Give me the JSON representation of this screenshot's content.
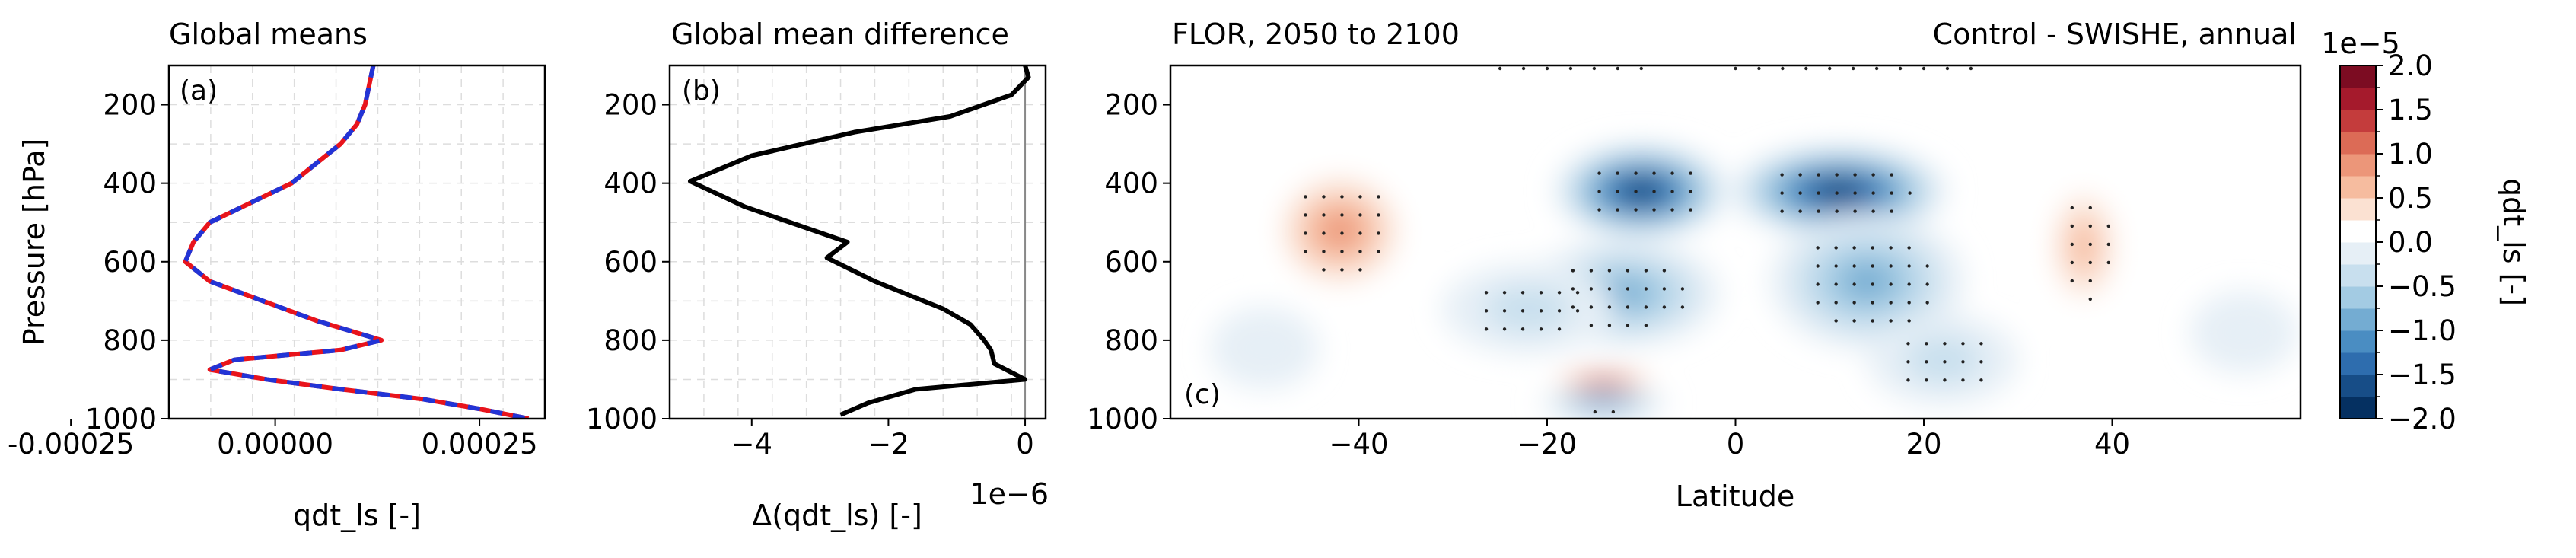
{
  "chart_data": [
    {
      "type": "line",
      "panel_label": "(a)",
      "title": "Global means",
      "xlabel": "qdt_ls [-]",
      "ylabel": "Pressure [hPa]",
      "xlim": [
        -0.00013,
        0.00033
      ],
      "ylim": [
        1000,
        100
      ],
      "y_inverted": true,
      "grid": true,
      "x_ticks": [
        -0.00025,
        0.0,
        0.00025
      ],
      "x_tick_labels": [
        "-0.00025",
        "0.00000",
        "0.00025"
      ],
      "y_ticks": [
        200,
        400,
        600,
        800,
        1000
      ],
      "y_tick_labels": [
        "200",
        "400",
        "600",
        "800",
        "1000"
      ],
      "series": [
        {
          "color": "#e8141c",
          "style": "solid",
          "x": [
            0.00012,
            0.000115,
            0.00011,
            0.0001,
            8e-05,
            5e-05,
            2e-05,
            -3e-05,
            -8e-05,
            -0.0001,
            -0.00011,
            -8e-05,
            5e-05,
            0.00013,
            8e-05,
            -5e-05,
            -8e-05,
            -1e-05,
            8e-05,
            0.00018,
            0.00025,
            0.00031
          ],
          "y": [
            100,
            150,
            200,
            250,
            300,
            350,
            400,
            450,
            500,
            550,
            600,
            650,
            750,
            800,
            825,
            850,
            875,
            900,
            925,
            950,
            975,
            1000
          ]
        },
        {
          "color": "#2234d6",
          "style": "dashed",
          "x": [
            0.00012,
            0.000115,
            0.00011,
            0.0001,
            8e-05,
            5e-05,
            2e-05,
            -3e-05,
            -8e-05,
            -0.0001,
            -0.00011,
            -8e-05,
            5e-05,
            0.00013,
            8e-05,
            -5e-05,
            -8e-05,
            -1e-05,
            8e-05,
            0.00018,
            0.00025,
            0.00031
          ],
          "y": [
            100,
            150,
            200,
            250,
            300,
            350,
            400,
            450,
            500,
            550,
            600,
            650,
            750,
            800,
            825,
            850,
            875,
            900,
            925,
            950,
            975,
            1000
          ]
        }
      ]
    },
    {
      "type": "line",
      "panel_label": "(b)",
      "title": "Global mean difference",
      "xlabel": "Δ(qdt_ls) [-]",
      "x_offset_text": "1e−6",
      "xlim": [
        -5.2,
        0.3
      ],
      "ylim": [
        1000,
        100
      ],
      "y_inverted": true,
      "grid": true,
      "x_ticks": [
        -4,
        -2,
        0
      ],
      "x_tick_labels": [
        "−4",
        "−2",
        "0"
      ],
      "y_ticks": [
        200,
        400,
        600,
        800,
        1000
      ],
      "y_tick_labels": [
        "200",
        "400",
        "600",
        "800",
        "1000"
      ],
      "zero_line": true,
      "series": [
        {
          "color": "#000000",
          "style": "solid",
          "x": [
            0.0,
            0.05,
            -0.2,
            -1.1,
            -2.5,
            -4.0,
            -4.9,
            -4.1,
            -2.6,
            -2.9,
            -2.2,
            -1.2,
            -0.8,
            -0.6,
            -0.5,
            -0.45,
            0.0,
            -1.6,
            -2.0,
            -2.3,
            -2.7
          ],
          "y": [
            100,
            130,
            175,
            230,
            270,
            330,
            395,
            460,
            550,
            590,
            650,
            720,
            760,
            800,
            825,
            860,
            900,
            925,
            945,
            960,
            990
          ]
        }
      ]
    },
    {
      "type": "heatmap",
      "subtype": "filled-contour",
      "panel_label": "(c)",
      "title_left": "FLOR, 2050 to 2100",
      "title_right": "Control - SWISHE, annual",
      "xlabel": "Latitude",
      "xlim": [
        -60,
        60
      ],
      "ylim": [
        1000,
        100
      ],
      "y_inverted": true,
      "x_ticks": [
        -40,
        -20,
        0,
        20,
        40
      ],
      "x_tick_labels": [
        "−40",
        "−20",
        "0",
        "20",
        "40"
      ],
      "y_ticks": [
        200,
        400,
        600,
        800,
        1000
      ],
      "y_tick_labels": [
        "200",
        "400",
        "600",
        "800",
        "1000"
      ],
      "colormap": "RdBu_r",
      "value_unit_exponent": "1e−5",
      "contour_levels": [
        -2.0,
        -1.75,
        -1.5,
        -1.25,
        -1.0,
        -0.75,
        -0.5,
        -0.25,
        0.25,
        0.5,
        0.75,
        1.0,
        1.25,
        1.5,
        1.75,
        2.0
      ],
      "features": [
        {
          "lat": -42,
          "p": 520,
          "value": 0.95,
          "lat_width": 7,
          "p_height": 330
        },
        {
          "lat": -10,
          "p": 420,
          "value": -2.0,
          "lat_width": 8,
          "p_height": 230
        },
        {
          "lat": -12,
          "p": 680,
          "value": -0.9,
          "lat_width": 9,
          "p_height": 260
        },
        {
          "lat": -22,
          "p": 720,
          "value": -0.55,
          "lat_width": 8,
          "p_height": 220
        },
        {
          "lat": -14,
          "p": 960,
          "value": -1.4,
          "lat_width": 6,
          "p_height": 60
        },
        {
          "lat": -14,
          "p": 905,
          "value": 2.0,
          "lat_width": 5,
          "p_height": 45
        },
        {
          "lat": 11,
          "p": 420,
          "value": -2.0,
          "lat_width": 10,
          "p_height": 220
        },
        {
          "lat": 14,
          "p": 650,
          "value": -1.05,
          "lat_width": 9,
          "p_height": 330
        },
        {
          "lat": 22,
          "p": 850,
          "value": -0.55,
          "lat_width": 7,
          "p_height": 220
        },
        {
          "lat": 37,
          "p": 560,
          "value": 0.65,
          "lat_width": 4,
          "p_height": 360
        },
        {
          "lat": -50,
          "p": 820,
          "value": -0.35,
          "lat_width": 5,
          "p_height": 200
        },
        {
          "lat": 54,
          "p": 780,
          "value": -0.3,
          "lat_width": 5,
          "p_height": 200
        },
        {
          "lat": 52,
          "p": 400,
          "value": 0.3,
          "lat_width": 3,
          "p_height": 60
        }
      ],
      "colorbar": {
        "exponent_label": "1e−5",
        "label": "qdt_ls [-]",
        "tick_values": [
          2.0,
          1.5,
          1.0,
          0.5,
          0.0,
          -0.5,
          -1.0,
          -1.5,
          -2.0
        ],
        "tick_labels": [
          "2.0",
          "1.5",
          "1.0",
          "0.5",
          "0.0",
          "−0.5",
          "−1.0",
          "−1.5",
          "−2.0"
        ],
        "colors": [
          "#053061",
          "#174d87",
          "#2e6dae",
          "#4a8dc2",
          "#74acd2",
          "#a3cbe3",
          "#c8dfee",
          "#e6eff6",
          "#ffffff",
          "#fbe1d2",
          "#f6bc9f",
          "#ec9679",
          "#dc6b56",
          "#c43c3c",
          "#a51a2c",
          "#7c0c22"
        ]
      }
    }
  ]
}
